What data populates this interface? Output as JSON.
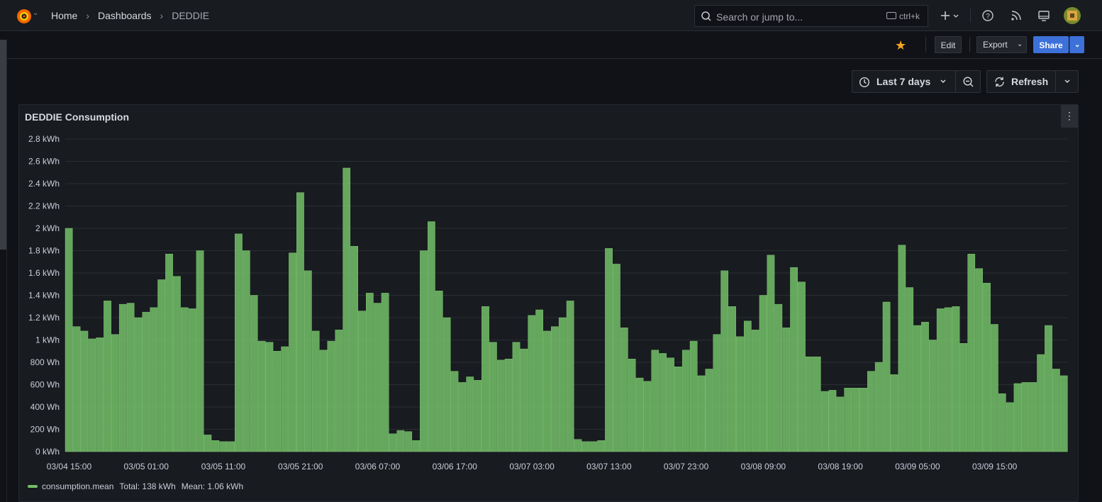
{
  "breadcrumb": {
    "home": "Home",
    "dashboards": "Dashboards",
    "current": "DEDDIE"
  },
  "search": {
    "placeholder": "Search or jump to...",
    "shortcut": "ctrl+k"
  },
  "toolbar": {
    "edit": "Edit",
    "export": "Export",
    "share": "Share"
  },
  "time_picker": {
    "range": "Last 7 days",
    "refresh": "Refresh"
  },
  "panel": {
    "title": "DEDDIE Consumption"
  },
  "legend": {
    "series": "consumption.mean",
    "total": "Total: 138 kWh",
    "mean": "Mean: 1.06 kWh"
  },
  "colors": {
    "accent": "#3d71d9",
    "bar": "#73bf69",
    "star": "#f5a623",
    "background": "#111217"
  },
  "icons": [
    "grafana-logo-icon",
    "search-icon",
    "keyboard-icon",
    "plus-icon",
    "help-icon",
    "rss-icon",
    "monitor-icon",
    "star-icon",
    "clock-icon",
    "zoom-out-icon",
    "refresh-icon",
    "chevron-down-icon",
    "panel-menu-icon"
  ],
  "chart_data": {
    "type": "bar",
    "title": "DEDDIE Consumption",
    "ylabel": "",
    "unit": "Wh",
    "ylim": [
      0,
      2800
    ],
    "y_ticks": [
      "0 kWh",
      "200 Wh",
      "400 Wh",
      "600 Wh",
      "800 Wh",
      "1 kWh",
      "1.2 kWh",
      "1.4 kWh",
      "1.6 kWh",
      "1.8 kWh",
      "2 kWh",
      "2.2 kWh",
      "2.4 kWh",
      "2.6 kWh",
      "2.8 kWh"
    ],
    "x_ticks": [
      "03/04 15:00",
      "03/05 01:00",
      "03/05 11:00",
      "03/05 21:00",
      "03/06 07:00",
      "03/06 17:00",
      "03/07 03:00",
      "03/07 13:00",
      "03/07 23:00",
      "03/08 09:00",
      "03/08 19:00",
      "03/09 05:00",
      "03/09 15:00"
    ],
    "grid": true,
    "legend": "bottom-left",
    "series": [
      {
        "name": "consumption.mean",
        "values": [
          2000,
          1120,
          1080,
          1010,
          1020,
          1350,
          1050,
          1320,
          1330,
          1200,
          1250,
          1290,
          1540,
          1770,
          1570,
          1290,
          1280,
          1800,
          150,
          100,
          90,
          90,
          1950,
          1800,
          1400,
          990,
          980,
          900,
          940,
          1780,
          2320,
          1620,
          1080,
          910,
          990,
          1090,
          2540,
          1840,
          1260,
          1420,
          1330,
          1420,
          160,
          190,
          180,
          100,
          1800,
          2060,
          1440,
          1200,
          720,
          620,
          670,
          640,
          1300,
          980,
          820,
          830,
          980,
          920,
          1220,
          1270,
          1080,
          1120,
          1200,
          1350,
          110,
          90,
          90,
          100,
          1820,
          1680,
          1110,
          830,
          660,
          630,
          910,
          880,
          840,
          760,
          910,
          990,
          680,
          740,
          1050,
          1620,
          1300,
          1030,
          1170,
          1090,
          1400,
          1760,
          1320,
          1110,
          1650,
          1520,
          850,
          850,
          540,
          550,
          490,
          570,
          570,
          570,
          720,
          800,
          1340,
          690,
          1850,
          1470,
          1130,
          1160,
          1000,
          1280,
          1290,
          1300,
          970,
          1770,
          1640,
          1510,
          1140,
          520,
          440,
          610,
          620,
          620,
          870,
          1130,
          740,
          680
        ]
      }
    ]
  }
}
